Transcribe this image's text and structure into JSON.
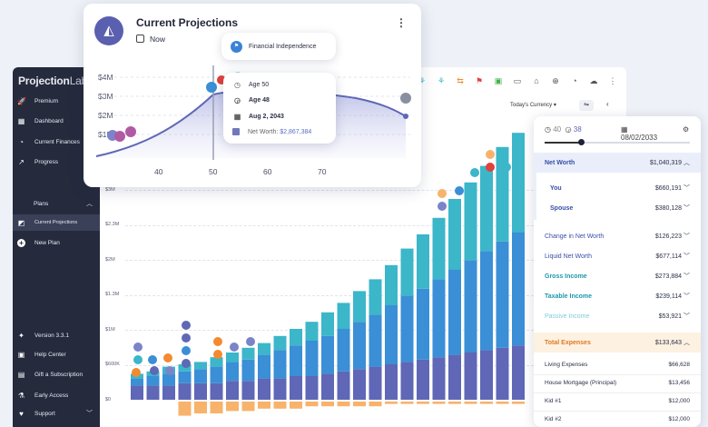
{
  "sidebar": {
    "brand_bold": "Projection",
    "brand_rest": "Lab",
    "items": [
      {
        "label": "Premium",
        "icon": "rocket-icon"
      },
      {
        "label": "Dashboard",
        "icon": "dashboard-icon"
      },
      {
        "label": "Current Finances",
        "icon": "pie-chart-icon"
      },
      {
        "label": "Progress",
        "icon": "trending-up-icon"
      }
    ],
    "plans_label": "Plans",
    "plans": [
      {
        "label": "Current Projections",
        "icon": "chart-icon"
      },
      {
        "label": "New Plan",
        "icon": "plus-icon"
      }
    ],
    "footer": [
      {
        "label": "Version 3.3.1",
        "icon": "sparkle-icon"
      },
      {
        "label": "Help Center",
        "icon": "help-icon"
      },
      {
        "label": "Gift a Subscription",
        "icon": "gift-icon"
      },
      {
        "label": "Early Access",
        "icon": "flask-icon"
      },
      {
        "label": "Support",
        "icon": "heart-icon"
      }
    ]
  },
  "toolbar": {
    "currency_label": "Today's Currency"
  },
  "main_chart": {
    "y_ticks": [
      "$3M",
      "$2.3M",
      "$2M",
      "$1.3M",
      "$1M",
      "$600K",
      "$0"
    ]
  },
  "card": {
    "title": "Current Projections",
    "subtitle": "Now",
    "y_ticks": [
      "$4M",
      "$3M",
      "$2M",
      "$1M"
    ],
    "x_ticks": [
      "40",
      "50",
      "60",
      "70"
    ]
  },
  "fi_popup": {
    "label": "Financial Independence"
  },
  "tooltip": {
    "age1": "Age 50",
    "age2": "Age 48",
    "date": "Aug 2, 2043",
    "net_worth_label": "Net Worth:",
    "net_worth_value": "$2,867,384"
  },
  "panel": {
    "age_you": "40",
    "age_spouse": "38",
    "date": "08/02/2033",
    "rows": [
      {
        "label": "Net Worth",
        "value": "$1,040,319",
        "style": "head-blue"
      },
      {
        "label": "You",
        "value": "$660,191",
        "style": "sub-blue"
      },
      {
        "label": "Spouse",
        "value": "$380,128",
        "style": "sub-blue"
      },
      {
        "label": "Change in Net Worth",
        "value": "$126,223",
        "style": "blue"
      },
      {
        "label": "Liquid Net Worth",
        "value": "$677,114",
        "style": "blue"
      },
      {
        "label": "Gross Income",
        "value": "$273,884",
        "style": "teal"
      },
      {
        "label": "Taxable Income",
        "value": "$239,114",
        "style": "teal"
      },
      {
        "label": "Passive Income",
        "value": "$53,921",
        "style": "teal-light"
      },
      {
        "label": "Total Expenses",
        "value": "$133,643",
        "style": "head-orange"
      },
      {
        "label": "Living Expenses",
        "value": "$66,628",
        "style": "plain"
      },
      {
        "label": "House Mortgage (Principal)",
        "value": "$13,456",
        "style": "plain"
      },
      {
        "label": "Kid #1",
        "value": "$12,000",
        "style": "plain"
      },
      {
        "label": "Kid #2",
        "value": "$12,000",
        "style": "plain"
      }
    ]
  },
  "colors": {
    "sidebar": "#252a3d",
    "accent": "#5a5fb0",
    "teal": "#3cb6c9",
    "blue": "#3a8fd6",
    "indigo": "#5f67b6",
    "orange": "#f7b36b"
  },
  "chart_data": {
    "type": "bar",
    "stacked": true,
    "y_ticks": [
      "$0",
      "$600K",
      "$1M",
      "$1.3M",
      "$2M",
      "$2.3M",
      "$3M"
    ],
    "note_series": [
      "indigo",
      "blue",
      "teal",
      "negative-orange"
    ],
    "bars": [
      {
        "indigo": 0.06,
        "blue": 0.03,
        "teal": 0.02,
        "neg": 0.0
      },
      {
        "indigo": 0.06,
        "blue": 0.04,
        "teal": 0.02,
        "neg": 0.0
      },
      {
        "indigo": 0.06,
        "blue": 0.05,
        "teal": 0.03,
        "neg": 0.0
      },
      {
        "indigo": 0.07,
        "blue": 0.05,
        "teal": 0.03,
        "neg": 0.06
      },
      {
        "indigo": 0.07,
        "blue": 0.06,
        "teal": 0.03,
        "neg": 0.05
      },
      {
        "indigo": 0.07,
        "blue": 0.07,
        "teal": 0.04,
        "neg": 0.05
      },
      {
        "indigo": 0.08,
        "blue": 0.08,
        "teal": 0.04,
        "neg": 0.04
      },
      {
        "indigo": 0.08,
        "blue": 0.09,
        "teal": 0.05,
        "neg": 0.04
      },
      {
        "indigo": 0.09,
        "blue": 0.1,
        "teal": 0.05,
        "neg": 0.03
      },
      {
        "indigo": 0.09,
        "blue": 0.12,
        "teal": 0.06,
        "neg": 0.03
      },
      {
        "indigo": 0.1,
        "blue": 0.13,
        "teal": 0.07,
        "neg": 0.03
      },
      {
        "indigo": 0.1,
        "blue": 0.15,
        "teal": 0.08,
        "neg": 0.02
      },
      {
        "indigo": 0.11,
        "blue": 0.16,
        "teal": 0.1,
        "neg": 0.02
      },
      {
        "indigo": 0.12,
        "blue": 0.18,
        "teal": 0.11,
        "neg": 0.02
      },
      {
        "indigo": 0.13,
        "blue": 0.2,
        "teal": 0.13,
        "neg": 0.02
      },
      {
        "indigo": 0.14,
        "blue": 0.22,
        "teal": 0.15,
        "neg": 0.02
      },
      {
        "indigo": 0.15,
        "blue": 0.25,
        "teal": 0.17,
        "neg": 0.01
      },
      {
        "indigo": 0.16,
        "blue": 0.28,
        "teal": 0.2,
        "neg": 0.01
      },
      {
        "indigo": 0.17,
        "blue": 0.3,
        "teal": 0.23,
        "neg": 0.01
      },
      {
        "indigo": 0.18,
        "blue": 0.33,
        "teal": 0.26,
        "neg": 0.01
      },
      {
        "indigo": 0.19,
        "blue": 0.36,
        "teal": 0.3,
        "neg": 0.01
      },
      {
        "indigo": 0.2,
        "blue": 0.39,
        "teal": 0.33,
        "neg": 0.01
      },
      {
        "indigo": 0.21,
        "blue": 0.42,
        "teal": 0.36,
        "neg": 0.01
      },
      {
        "indigo": 0.22,
        "blue": 0.45,
        "teal": 0.4,
        "neg": 0.01
      },
      {
        "indigo": 0.23,
        "blue": 0.48,
        "teal": 0.42,
        "neg": 0.01
      }
    ]
  }
}
